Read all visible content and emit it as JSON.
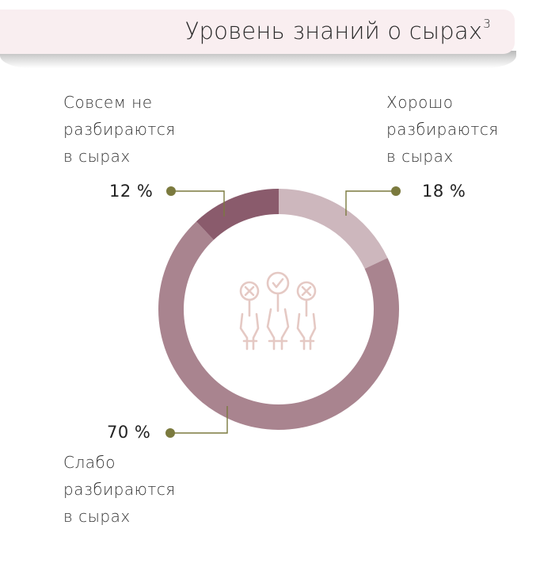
{
  "title": {
    "text": "Уровень знаний о сырах",
    "footnote": "3"
  },
  "chart_data": {
    "type": "pie",
    "style": "donut",
    "categories": [
      "Хорошо разбираются в сырах",
      "Слабо разбираются в сырах",
      "Совсем не разбираются в сырах"
    ],
    "values": [
      18,
      70,
      12
    ],
    "unit": "%",
    "colors": [
      "#cdb7bd",
      "#a9848f",
      "#8a5b6c"
    ],
    "center_icon": "voting-hands-icon",
    "title": "Уровень знаний о сырах",
    "legend": "callouts"
  },
  "labels": {
    "good": {
      "lines": [
        "Хорошо",
        "разбираются",
        "в сырах"
      ],
      "value": "18 %"
    },
    "weak": {
      "lines": [
        "Слабо",
        "разбираются",
        "в сырах"
      ],
      "value": "70 %"
    },
    "none": {
      "lines": [
        "Совсем не",
        "разбираются",
        "в сырах"
      ],
      "value": "12 %"
    }
  },
  "colors": {
    "leader": "#7b7a3e",
    "title_bg": "#f9eef0",
    "icon": "#e5c9c4"
  }
}
